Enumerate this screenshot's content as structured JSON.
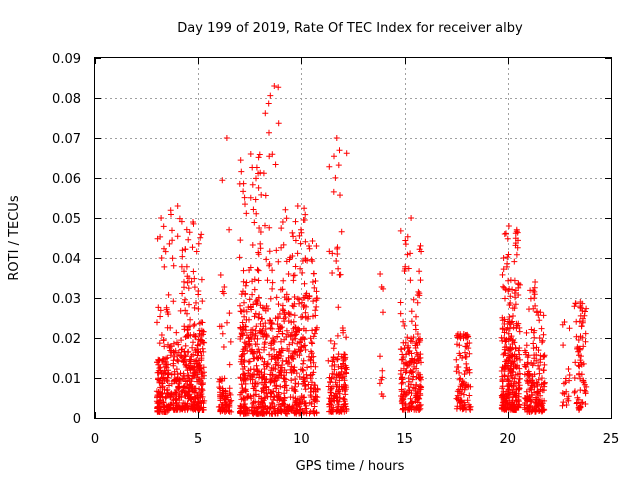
{
  "chart_data": {
    "type": "scatter",
    "title": "Day 199 of 2019, Rate Of TEC Index for receiver alby",
    "xlabel": "GPS time / hours",
    "ylabel": "ROTI / TECUs",
    "xlim": [
      0,
      25
    ],
    "ylim": [
      0,
      0.09
    ],
    "xticks": [
      0,
      5,
      10,
      15,
      20,
      25
    ],
    "xtick_labels": [
      "0",
      "5",
      "10",
      "15",
      "20",
      "25"
    ],
    "yticks": [
      0,
      0.01,
      0.02,
      0.03,
      0.04,
      0.05,
      0.06,
      0.07,
      0.08,
      0.09
    ],
    "ytick_labels": [
      "0",
      "0.01",
      "0.02",
      "0.03",
      "0.04",
      "0.05",
      "0.06",
      "0.07",
      "0.08",
      "0.09"
    ],
    "grid": true,
    "marker": "+",
    "color": "#ff0000",
    "clusters": [
      {
        "x_range": [
          3.0,
          3.6
        ],
        "y_range": [
          0.0015,
          0.015
        ],
        "count": 120,
        "sparse_max": 0.05
      },
      {
        "x_range": [
          3.6,
          4.3
        ],
        "y_range": [
          0.002,
          0.018
        ],
        "count": 110,
        "sparse_max": 0.053
      },
      {
        "x_range": [
          4.3,
          5.3
        ],
        "y_range": [
          0.002,
          0.022
        ],
        "count": 230,
        "sparse_max": 0.049
      },
      {
        "x_range": [
          6.0,
          6.6
        ],
        "y_range": [
          0.0015,
          0.01
        ],
        "count": 70,
        "sparse_max": 0.07
      },
      {
        "x_range": [
          7.0,
          8.2
        ],
        "y_range": [
          0.001,
          0.03
        ],
        "count": 260,
        "sparse_max": 0.066
      },
      {
        "x_range": [
          8.2,
          9.0
        ],
        "y_range": [
          0.001,
          0.025
        ],
        "count": 150,
        "sparse_max": 0.083
      },
      {
        "x_range": [
          9.0,
          10.8
        ],
        "y_range": [
          0.001,
          0.03
        ],
        "count": 300,
        "sparse_max": 0.053
      },
      {
        "x_range": [
          11.3,
          12.2
        ],
        "y_range": [
          0.0015,
          0.016
        ],
        "count": 140,
        "sparse_max": 0.07
      },
      {
        "x_range": [
          13.8,
          14.0
        ],
        "y_range": [
          0.003,
          0.015
        ],
        "count": 6,
        "sparse_max": 0.036
      },
      {
        "x_range": [
          14.8,
          15.8
        ],
        "y_range": [
          0.002,
          0.02
        ],
        "count": 170,
        "sparse_max": 0.05
      },
      {
        "x_range": [
          17.5,
          18.2
        ],
        "y_range": [
          0.002,
          0.02
        ],
        "count": 80,
        "sparse_max": 0.021
      },
      {
        "x_range": [
          19.7,
          20.6
        ],
        "y_range": [
          0.002,
          0.025
        ],
        "count": 240,
        "sparse_max": 0.048
      },
      {
        "x_range": [
          20.8,
          21.8
        ],
        "y_range": [
          0.0015,
          0.017
        ],
        "count": 150,
        "sparse_max": 0.034
      },
      {
        "x_range": [
          22.6,
          23.0
        ],
        "y_range": [
          0.003,
          0.012
        ],
        "count": 14,
        "sparse_max": 0.024
      },
      {
        "x_range": [
          23.2,
          23.8
        ],
        "y_range": [
          0.002,
          0.025
        ],
        "count": 60,
        "sparse_max": 0.029
      }
    ]
  }
}
